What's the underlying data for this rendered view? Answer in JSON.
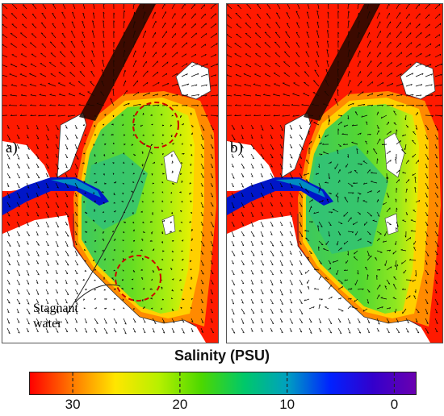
{
  "panels": [
    {
      "label": "a)",
      "annotation": [
        "Stagnant",
        "water"
      ]
    },
    {
      "label": "b)"
    }
  ],
  "colorbar": {
    "title": "Salinity (PSU)",
    "min": -2,
    "max": 34,
    "reversed": true,
    "ticks": [
      {
        "value": 30,
        "label": "30"
      },
      {
        "value": 20,
        "label": "20"
      },
      {
        "value": 10,
        "label": "10"
      },
      {
        "value": 0,
        "label": "0"
      }
    ],
    "colors": [
      "#ff0000",
      "#ff7a00",
      "#ffe600",
      "#b8f000",
      "#4cd800",
      "#00c86a",
      "#00a0c0",
      "#0022ff",
      "#3300cc",
      "#6a00b0"
    ]
  },
  "colors": {
    "sea": "#ff1a00",
    "land": "#ffffff",
    "vectors": "#000000",
    "circles": "#cc0000"
  }
}
